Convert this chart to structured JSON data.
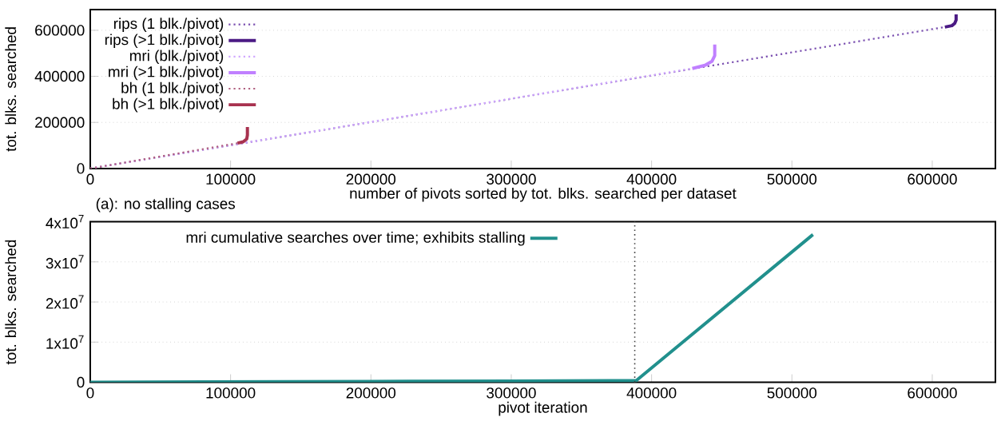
{
  "chart_data": [
    {
      "type": "line",
      "xlabel": "number of pivots sorted by tot. blks. searched per dataset",
      "ylabel": "tot. blks. searched",
      "annotations": [
        "(a): no stalling cases"
      ],
      "xlim": [
        0,
        645000
      ],
      "ylim": [
        0,
        690000
      ],
      "xticks": [
        0,
        100000,
        200000,
        300000,
        400000,
        500000,
        600000
      ],
      "yticks": [
        0,
        200000,
        400000,
        600000
      ],
      "grid": "y",
      "legend": "top left",
      "series": [
        {
          "name": "rips (1 blk./pivot)",
          "color": "#7a4fb0",
          "line_style": "dotted",
          "x": [
            0,
            609000
          ],
          "values": [
            0,
            614000
          ]
        },
        {
          "name": "rips (>1 blk./pivot)",
          "color": "#4b1a84",
          "line_style": "solid",
          "x": [
            609000,
            614000,
            616000,
            617000,
            617000
          ],
          "values": [
            614000,
            620000,
            630000,
            645000,
            669000
          ]
        },
        {
          "name": "mri (blk./pivot)",
          "color": "#d0a8ff",
          "line_style": "dotted",
          "x": [
            0,
            429000
          ],
          "values": [
            0,
            434000
          ]
        },
        {
          "name": "mri (>1 blk./pivot)",
          "color": "#c080ff",
          "line_style": "solid",
          "x": [
            429000,
            438000,
            443000,
            445000,
            445000
          ],
          "values": [
            434000,
            448000,
            465000,
            490000,
            538000
          ]
        },
        {
          "name": "bh (1 blk./pivot)",
          "color": "#b06080",
          "line_style": "dotted",
          "x": [
            0,
            105000
          ],
          "values": [
            0,
            110000
          ]
        },
        {
          "name": "bh (>1 blk./pivot)",
          "color": "#a8324f",
          "line_style": "solid",
          "x": [
            105000,
            109000,
            111500,
            112000,
            112000
          ],
          "values": [
            110000,
            116000,
            128000,
            145000,
            180000
          ]
        }
      ]
    },
    {
      "type": "line",
      "xlabel": "pivot iteration",
      "ylabel": "tot. blks. searched",
      "xlim": [
        0,
        645000
      ],
      "ylim": [
        0,
        40000000
      ],
      "xticks": [
        0,
        100000,
        200000,
        300000,
        400000,
        500000,
        600000
      ],
      "yticks": [
        0,
        {
          "value": 10000000,
          "label": "1x10$^{7}$"
        },
        {
          "value": 20000000,
          "label": "2x10$^{7}$"
        },
        {
          "value": 30000000,
          "label": "3x10$^{7}$"
        },
        {
          "value": 40000000,
          "label": "4x10$^{7}$"
        }
      ],
      "grid": "y",
      "legend": "top",
      "ref_lines": [
        {
          "axis": "x",
          "value": 388000,
          "color": "#404040",
          "line_style": "dotted"
        }
      ],
      "series": [
        {
          "name": "mri cumulative searches over time; exhibits stalling",
          "color": "#21908d",
          "line_style": "solid",
          "x": [
            0,
            100000,
            200000,
            300000,
            389000,
            515000
          ],
          "values": [
            0,
            100000,
            200000,
            300000,
            400000,
            36800000
          ]
        }
      ]
    }
  ]
}
